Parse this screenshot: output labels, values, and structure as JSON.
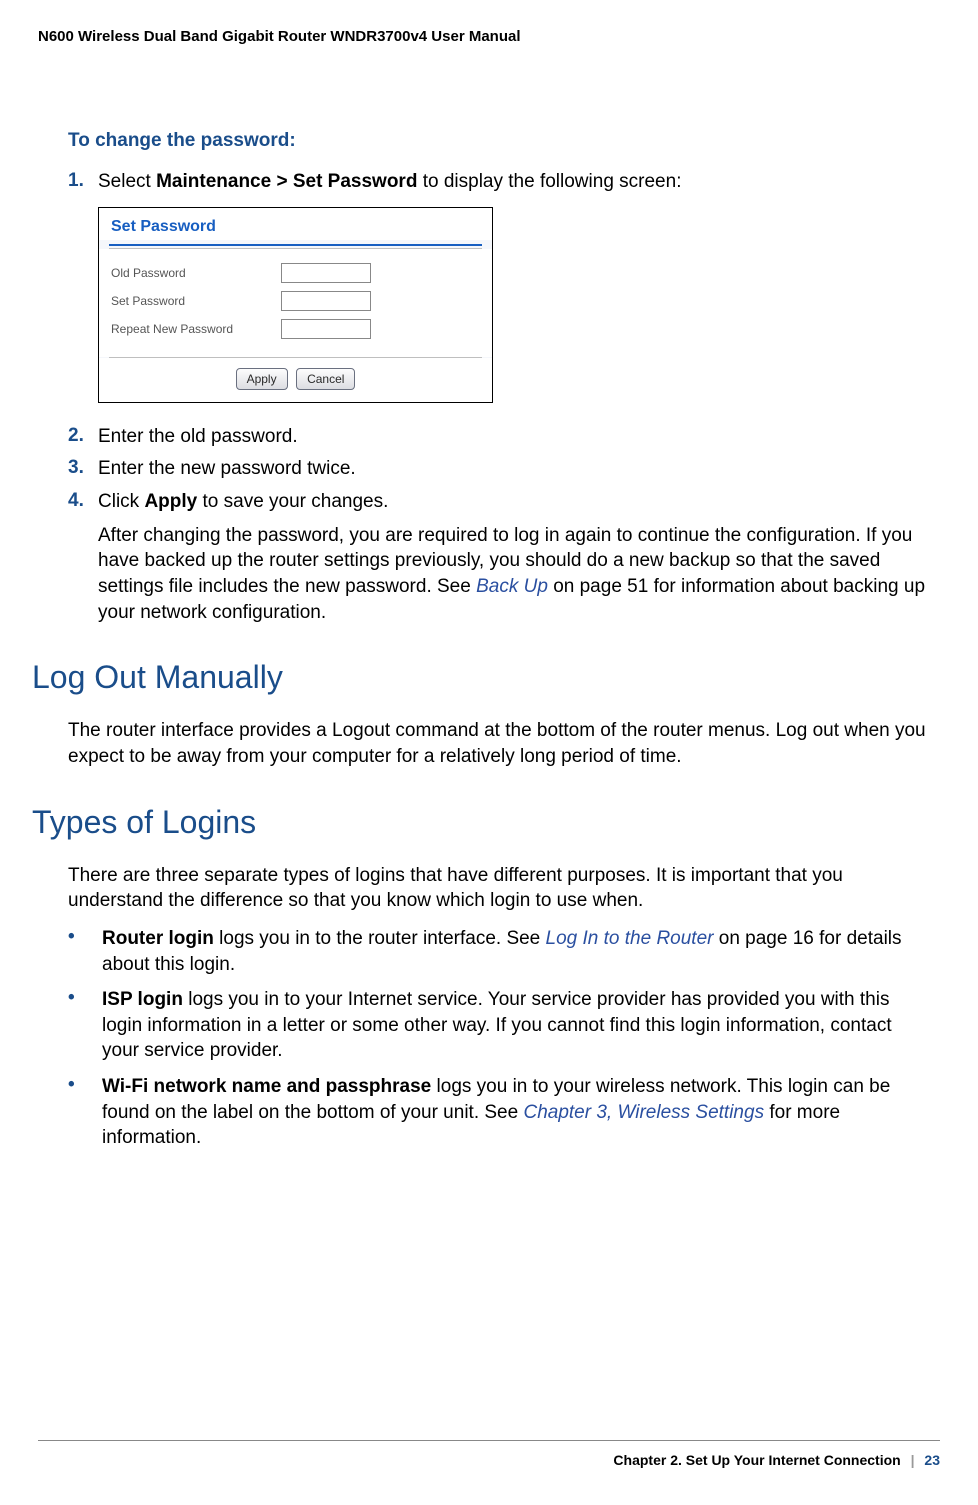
{
  "colors": {
    "accent_blue": "#1a4d8a",
    "xref_blue": "#2a4fa0",
    "panel_title_blue": "#175ec1",
    "body_text": "#000000",
    "muted_label": "#555555",
    "divider_grey": "#888888",
    "background": "#ffffff"
  },
  "typography": {
    "body_pt": 14,
    "heading_pt": 24,
    "running_header_pt": 11,
    "step_num_weight": "bold",
    "heading_family": "Segoe UI / Trebuchet"
  },
  "running_header": "N600 Wireless Dual Band Gigabit Router WNDR3700v4 User Manual",
  "procedure_title": "To change the password:",
  "step1": {
    "num": "1.",
    "pre": "Select ",
    "bold": "Maintenance > Set Password",
    "post": " to display the following screen:"
  },
  "screenshot": {
    "title": "Set Password",
    "row1_label": "Old Password",
    "row2_label": "Set Password",
    "row3_label": "Repeat New Password",
    "apply": "Apply",
    "cancel": "Cancel"
  },
  "step2": {
    "num": "2.",
    "text": "Enter the old password."
  },
  "step3": {
    "num": "3.",
    "text": "Enter the new password twice."
  },
  "step4": {
    "num": "4.",
    "pre": "Click ",
    "bold": "Apply",
    "post": " to save your changes."
  },
  "step4_body_pre": "After changing the password, you are required to log in again to continue the configuration. If you have backed up the router settings previously, you should do a new backup so that the saved settings file includes the new password. See ",
  "step4_body_xref": "Back Up",
  "step4_body_post": " on page 51 for information about backing up your network configuration.",
  "section_logout": "Log Out Manually",
  "logout_para": "The router interface provides a Logout command at the bottom of the router menus. Log out when you expect to be away from your computer for a relatively long period of time.",
  "section_types": "Types of Logins",
  "types_intro": "There are three separate types of logins that have different purposes. It is important that you understand the difference so that you know which login to use when.",
  "bulletA": {
    "bold": "Router login",
    "mid": " logs you in to the router interface. See ",
    "xref": "Log In to the Router",
    "post": " on page 16 for details about this login."
  },
  "bulletB": {
    "bold": "ISP login",
    "post": " logs you in to your Internet service. Your service provider has provided you with this login information in a letter or some other way. If you cannot find this login information, contact your service provider."
  },
  "bulletC": {
    "bold": "Wi-Fi network name and passphrase",
    "mid": " logs you in to your wireless network. This login can be found on the label on the bottom of your unit. See ",
    "xref": "Chapter 3, Wireless Settings",
    "post": " for more information."
  },
  "footer": {
    "chapter": "Chapter 2.  Set Up Your Internet Connection",
    "divider": "|",
    "page": "23"
  }
}
